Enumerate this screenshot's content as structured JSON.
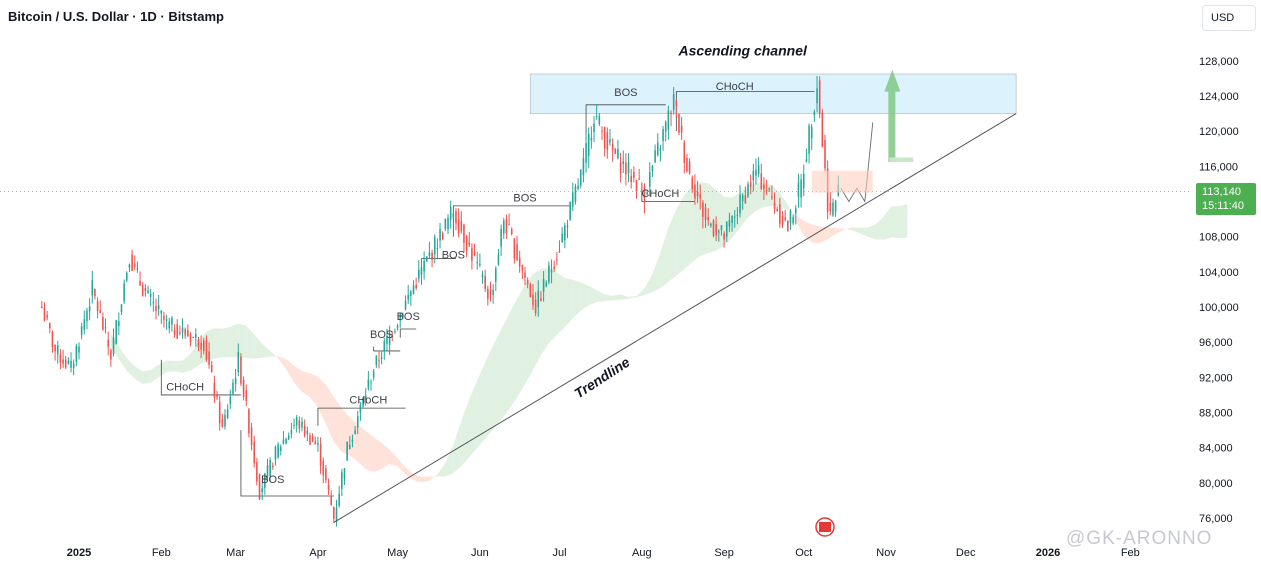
{
  "header": {
    "title": "Bitcoin / U.S. Dollar · 1D · Bitstamp",
    "currency": "USD"
  },
  "last_price": {
    "value": "113,140",
    "countdown": "15:11:40"
  },
  "watermark": "@GK-ARONNO",
  "colors": {
    "up": "#26a69a",
    "down": "#ef5350",
    "cloud_bull": "#c8e6c9",
    "cloud_bear": "#ffccbc",
    "channel": "#b3e5fc",
    "accent": "#4caf50"
  },
  "chart_data": {
    "type": "candlestick",
    "y_axis": {
      "min": 74500,
      "max": 130500,
      "ticks": [
        76000,
        80000,
        84000,
        88000,
        92000,
        96000,
        100000,
        104000,
        108000,
        112000,
        116000,
        120000,
        124000,
        128000
      ],
      "tick_labels": [
        "76,000",
        "80,000",
        "84,000",
        "88,000",
        "92,000",
        "96,000",
        "100,000",
        "104,000",
        "108,000",
        "",
        "116,000",
        "120,000",
        "124,000",
        "128,000"
      ]
    },
    "x_axis": {
      "labels": [
        "2025",
        "Feb",
        "Mar",
        "Apr",
        "May",
        "Jun",
        "Jul",
        "Aug",
        "Sep",
        "Oct",
        "Nov",
        "Dec",
        "2026",
        "Feb"
      ],
      "dates": [
        "2025-01-01",
        "2025-02-01",
        "2025-03-01",
        "2025-04-01",
        "2025-05-01",
        "2025-06-01",
        "2025-07-01",
        "2025-08-01",
        "2025-09-01",
        "2025-10-01",
        "2025-11-01",
        "2025-12-01",
        "2026-01-01",
        "2026-02-01"
      ]
    },
    "close_path": [
      [
        "2024-12-18",
        100000
      ],
      [
        "2024-12-23",
        95000
      ],
      [
        "2024-12-29",
        93000
      ],
      [
        "2025-01-06",
        102000
      ],
      [
        "2025-01-13",
        94500
      ],
      [
        "2025-01-20",
        106000
      ],
      [
        "2025-01-22",
        104000
      ],
      [
        "2025-01-27",
        101000
      ],
      [
        "2025-02-03",
        98000
      ],
      [
        "2025-02-10",
        97000
      ],
      [
        "2025-02-17",
        96000
      ],
      [
        "2025-02-24",
        86000
      ],
      [
        "2025-03-02",
        94000
      ],
      [
        "2025-03-10",
        79000
      ],
      [
        "2025-03-17",
        84000
      ],
      [
        "2025-03-24",
        87000
      ],
      [
        "2025-04-01",
        84000
      ],
      [
        "2025-04-07",
        76000
      ],
      [
        "2025-04-12",
        84000
      ],
      [
        "2025-04-22",
        93000
      ],
      [
        "2025-05-08",
        103000
      ],
      [
        "2025-05-22",
        111000
      ],
      [
        "2025-06-05",
        101000
      ],
      [
        "2025-06-10",
        110000
      ],
      [
        "2025-06-22",
        100000
      ],
      [
        "2025-07-01",
        107000
      ],
      [
        "2025-07-10",
        116000
      ],
      [
        "2025-07-14",
        122000
      ],
      [
        "2025-07-20",
        118000
      ],
      [
        "2025-08-02",
        113000
      ],
      [
        "2025-08-13",
        123500
      ],
      [
        "2025-08-18",
        116000
      ],
      [
        "2025-08-25",
        110000
      ],
      [
        "2025-09-01",
        108000
      ],
      [
        "2025-09-13",
        115500
      ],
      [
        "2025-09-25",
        109000
      ],
      [
        "2025-09-30",
        114000
      ],
      [
        "2025-10-06",
        125500
      ],
      [
        "2025-10-10",
        112000
      ],
      [
        "2025-10-11",
        110500
      ],
      [
        "2025-10-14",
        113140
      ]
    ],
    "annotations": [
      {
        "text": "BOS",
        "date": "2025-03-15",
        "price": 80000
      },
      {
        "text": "CHoCH",
        "date": "2025-02-10",
        "price": 90500
      },
      {
        "text": "CHoCH",
        "date": "2025-04-20",
        "price": 89000
      },
      {
        "text": "BOS",
        "date": "2025-04-25",
        "price": 96500
      },
      {
        "text": "BOS",
        "date": "2025-05-05",
        "price": 98500
      },
      {
        "text": "BOS",
        "date": "2025-05-22",
        "price": 105500
      },
      {
        "text": "BOS",
        "date": "2025-06-18",
        "price": 112000
      },
      {
        "text": "BOS",
        "date": "2025-07-26",
        "price": 124000
      },
      {
        "text": "CHoCH",
        "date": "2025-08-08",
        "price": 112500
      },
      {
        "text": "CHoCH",
        "date": "2025-09-05",
        "price": 124700
      },
      {
        "text": "Ascending channel",
        "date": "2025-09-08",
        "price": 128600
      },
      {
        "text": "Trendline",
        "date": "2025-07-18",
        "price": 91500
      }
    ]
  }
}
